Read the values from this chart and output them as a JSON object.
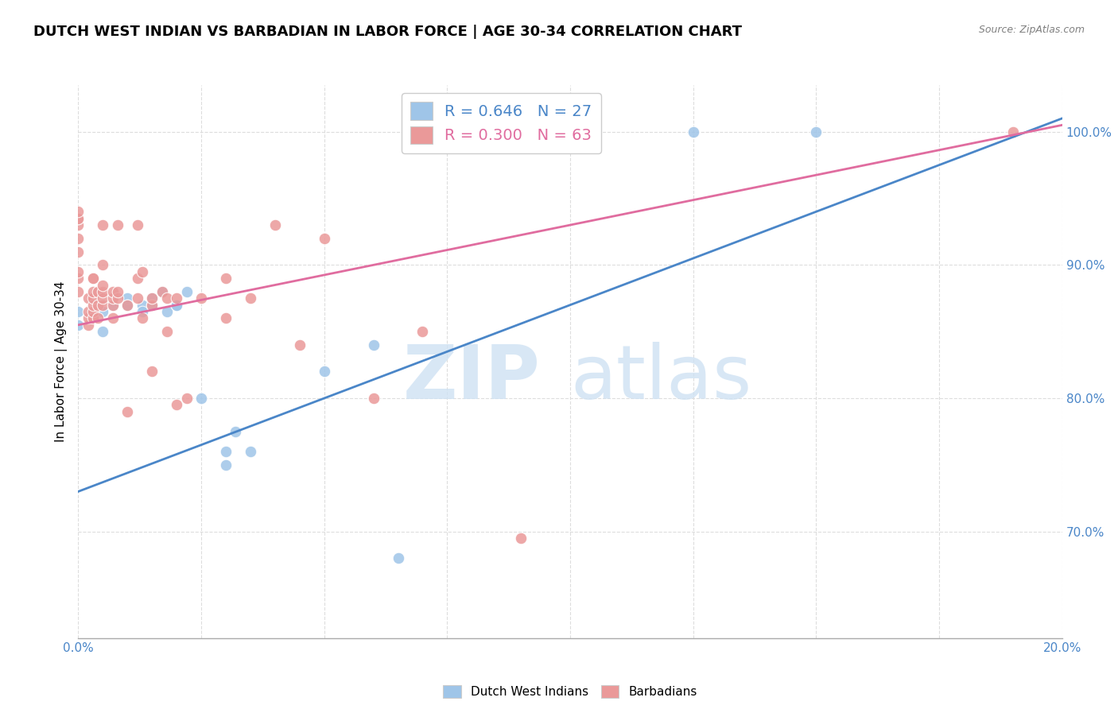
{
  "title": "DUTCH WEST INDIAN VS BARBADIAN IN LABOR FORCE | AGE 30-34 CORRELATION CHART",
  "source": "Source: ZipAtlas.com",
  "ylabel": "In Labor Force | Age 30-34",
  "xlim": [
    0.0,
    0.2
  ],
  "ylim": [
    0.62,
    1.035
  ],
  "yticks": [
    0.7,
    0.8,
    0.9,
    1.0
  ],
  "ytick_labels": [
    "70.0%",
    "80.0%",
    "90.0%",
    "100.0%"
  ],
  "xticks": [
    0.0,
    0.025,
    0.05,
    0.075,
    0.1,
    0.125,
    0.15,
    0.175,
    0.2
  ],
  "xtick_labels": [
    "0.0%",
    "",
    "",
    "",
    "",
    "",
    "",
    "",
    "20.0%"
  ],
  "blue_R": 0.646,
  "blue_N": 27,
  "pink_R": 0.3,
  "pink_N": 63,
  "blue_color": "#9fc5e8",
  "pink_color": "#ea9999",
  "blue_line_color": "#4a86c8",
  "pink_line_color": "#e06c9f",
  "blue_scatter_x": [
    0.0,
    0.0,
    0.005,
    0.005,
    0.007,
    0.01,
    0.01,
    0.01,
    0.013,
    0.013,
    0.015,
    0.015,
    0.017,
    0.018,
    0.02,
    0.02,
    0.022,
    0.025,
    0.03,
    0.03,
    0.032,
    0.035,
    0.05,
    0.06,
    0.065,
    0.125,
    0.15
  ],
  "blue_scatter_y": [
    0.865,
    0.855,
    0.865,
    0.85,
    0.87,
    0.87,
    0.875,
    0.87,
    0.87,
    0.865,
    0.87,
    0.875,
    0.88,
    0.865,
    0.87,
    0.87,
    0.88,
    0.8,
    0.76,
    0.75,
    0.775,
    0.76,
    0.82,
    0.84,
    0.68,
    1.0,
    1.0
  ],
  "pink_scatter_x": [
    0.0,
    0.0,
    0.0,
    0.0,
    0.0,
    0.0,
    0.0,
    0.0,
    0.0,
    0.002,
    0.002,
    0.002,
    0.002,
    0.003,
    0.003,
    0.003,
    0.003,
    0.003,
    0.003,
    0.003,
    0.004,
    0.004,
    0.004,
    0.005,
    0.005,
    0.005,
    0.005,
    0.005,
    0.005,
    0.007,
    0.007,
    0.007,
    0.007,
    0.008,
    0.008,
    0.008,
    0.01,
    0.01,
    0.012,
    0.012,
    0.012,
    0.013,
    0.013,
    0.015,
    0.015,
    0.015,
    0.017,
    0.018,
    0.018,
    0.02,
    0.02,
    0.022,
    0.025,
    0.03,
    0.03,
    0.035,
    0.04,
    0.045,
    0.05,
    0.06,
    0.07,
    0.09,
    0.19
  ],
  "pink_scatter_y": [
    0.88,
    0.89,
    0.895,
    0.91,
    0.92,
    0.93,
    0.935,
    0.935,
    0.94,
    0.855,
    0.86,
    0.865,
    0.875,
    0.86,
    0.865,
    0.87,
    0.875,
    0.88,
    0.89,
    0.89,
    0.86,
    0.87,
    0.88,
    0.87,
    0.875,
    0.88,
    0.885,
    0.9,
    0.93,
    0.86,
    0.87,
    0.875,
    0.88,
    0.875,
    0.88,
    0.93,
    0.79,
    0.87,
    0.875,
    0.89,
    0.93,
    0.86,
    0.895,
    0.82,
    0.87,
    0.875,
    0.88,
    0.85,
    0.875,
    0.795,
    0.875,
    0.8,
    0.875,
    0.86,
    0.89,
    0.875,
    0.93,
    0.84,
    0.92,
    0.8,
    0.85,
    0.695,
    1.0
  ],
  "blue_line_x0": 0.0,
  "blue_line_x1": 0.2,
  "blue_line_y0": 0.73,
  "blue_line_y1": 1.01,
  "pink_line_x0": 0.0,
  "pink_line_x1": 0.2,
  "pink_line_y0": 0.855,
  "pink_line_y1": 1.005,
  "watermark_zip": "ZIP",
  "watermark_atlas": "atlas",
  "background_color": "#ffffff",
  "grid_color": "#dddddd",
  "title_fontsize": 13,
  "label_fontsize": 11,
  "tick_fontsize": 11,
  "axis_color": "#4a86c8",
  "legend_fontsize": 14
}
